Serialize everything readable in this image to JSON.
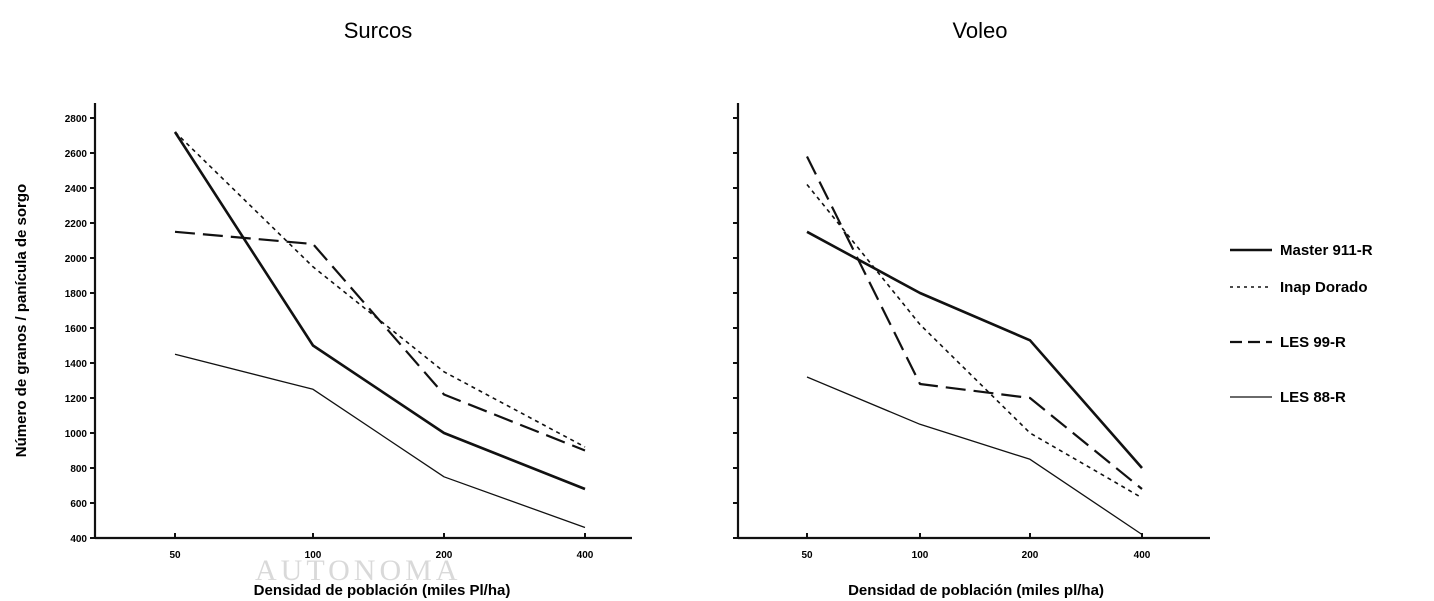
{
  "chart_data": [
    {
      "type": "line",
      "title": "Surcos",
      "xlabel": "Densidad de población (miles Pl/ha)",
      "ylabel": "Número de granos / panícula de sorgo",
      "categories": [
        "50",
        "100",
        "200",
        "400"
      ],
      "ylim": [
        400,
        2800
      ],
      "yticks": [
        "400",
        "600",
        "800",
        "1000",
        "1200",
        "1400",
        "1600",
        "1800",
        "2000",
        "2200",
        "2400",
        "2600",
        "2800"
      ],
      "grid": false,
      "series": [
        {
          "name": "Master 911-R",
          "values": [
            2720,
            1500,
            1000,
            680
          ]
        },
        {
          "name": "Inap Dorado",
          "values": [
            2720,
            1950,
            1350,
            920
          ]
        },
        {
          "name": "LES 99-R",
          "values": [
            2150,
            2080,
            1220,
            900
          ]
        },
        {
          "name": "LES 88-R",
          "values": [
            1450,
            1250,
            750,
            460
          ]
        }
      ]
    },
    {
      "type": "line",
      "title": "Voleo",
      "xlabel": "Densidad de población (miles pl/ha)",
      "ylabel": "",
      "categories": [
        "50",
        "100",
        "200",
        "400"
      ],
      "ylim": [
        400,
        2800
      ],
      "yticks": [],
      "grid": false,
      "series": [
        {
          "name": "Master 911-R",
          "values": [
            2150,
            1800,
            1530,
            800
          ]
        },
        {
          "name": "Inap Dorado",
          "values": [
            2420,
            1620,
            1000,
            630
          ]
        },
        {
          "name": "LES 99-R",
          "values": [
            2580,
            1280,
            1200,
            680
          ]
        },
        {
          "name": "LES 88-R",
          "values": [
            1320,
            1050,
            850,
            420
          ]
        }
      ]
    }
  ],
  "legend": {
    "placement": "right",
    "items": [
      {
        "label": "Master 911-R",
        "style": "thick-solid"
      },
      {
        "label": "Inap Dorado",
        "style": "dotted"
      },
      {
        "label": "LES 99-R",
        "style": "long-dash"
      },
      {
        "label": "LES 88-R",
        "style": "thin-solid"
      }
    ]
  },
  "watermark": {
    "text": "AUTONOMA"
  }
}
